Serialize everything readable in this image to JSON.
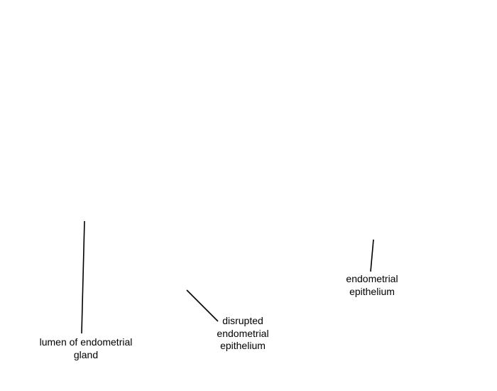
{
  "labels": {
    "lumen": {
      "line1": "lumen of endometrial",
      "line2": "gland"
    },
    "disrupted": {
      "line1": "disrupted",
      "line2": "endometrial",
      "line3": "epithelium"
    },
    "epithelium": {
      "line1": "endometrial",
      "line2": "epithelium"
    }
  },
  "colors": {
    "background": "#ffffff",
    "line": "#000000",
    "text": "#000000"
  }
}
